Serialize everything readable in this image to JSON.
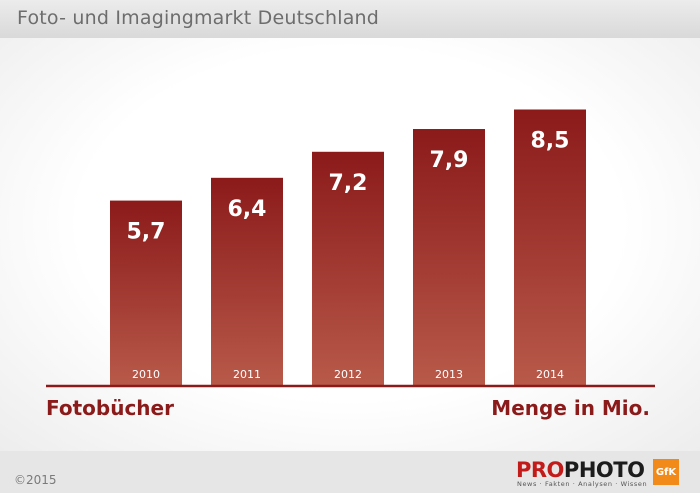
{
  "header": {
    "title": "Foto- und Imagingmarkt Deutschland"
  },
  "footer": {
    "copyright": "©2015",
    "brand_pro": "PRO",
    "brand_photo": "PHOTO",
    "tagline": "News · Fakten · Analysen · Wissen",
    "partner_logo": "GfK"
  },
  "colors": {
    "bar_top": "#8b1a1a",
    "bar_bottom": "#b85a4a",
    "axis": "#8b1a1a"
  },
  "chart_data": {
    "type": "bar",
    "title": "Foto- und Imagingmarkt Deutschland",
    "categories": [
      "2010",
      "2011",
      "2012",
      "2013",
      "2014"
    ],
    "values": [
      5.7,
      6.4,
      7.2,
      7.9,
      8.5
    ],
    "value_labels": [
      "5,7",
      "6,4",
      "7,2",
      "7,9",
      "8,5"
    ],
    "series_label": "Fotobücher",
    "unit_label": "Menge in Mio.",
    "grid": false
  }
}
